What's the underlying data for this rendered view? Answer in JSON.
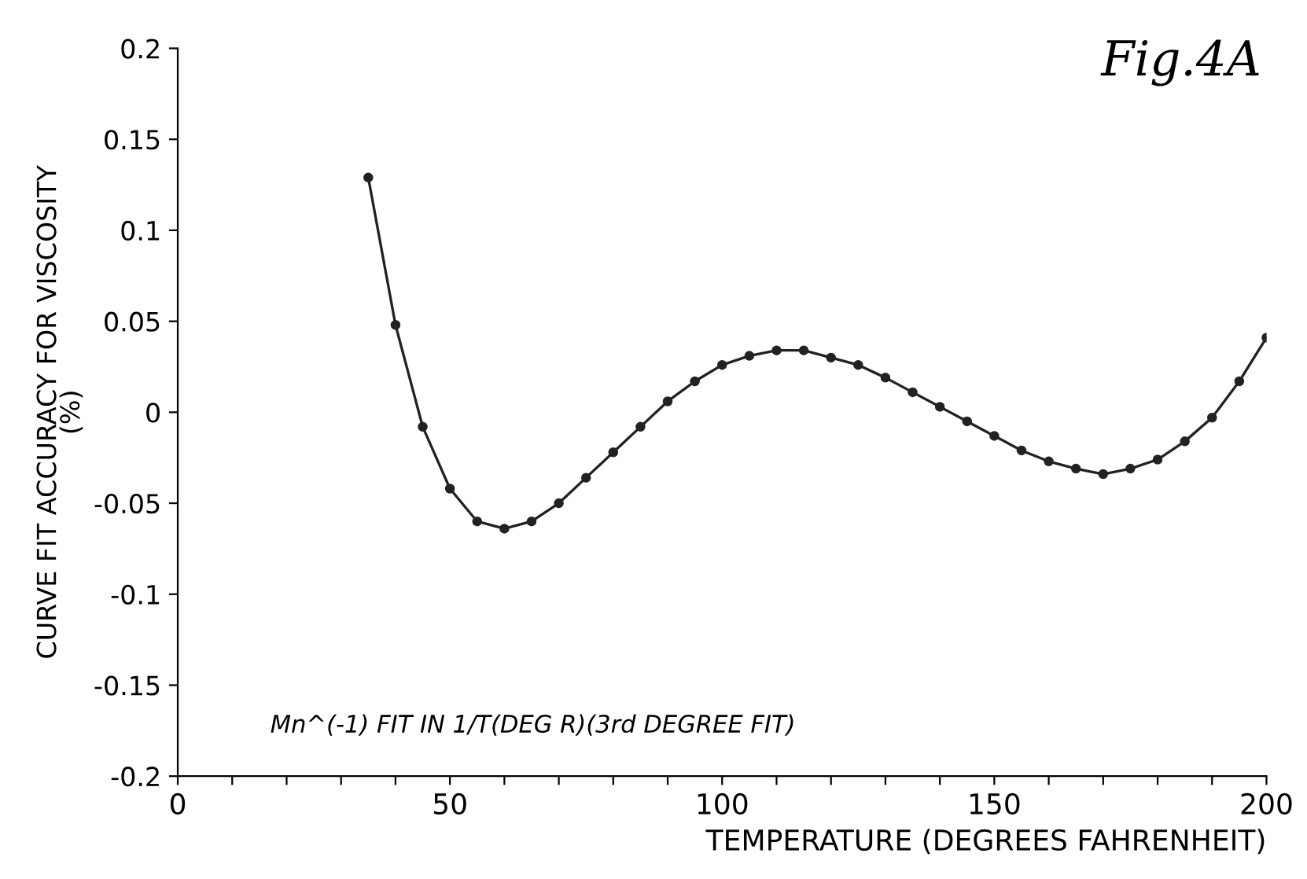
{
  "chart_data": {
    "type": "line",
    "xlabel": "TEMPERATURE (DEGREES FAHRENHEIT)",
    "ylabel": "CURVE FIT ACCURACY FOR VISCOSITY\n(%)",
    "annotations": [
      "Fig.4A",
      "Mn^(-1) FIT IN 1/T(DEG R)(3rd DEGREE FIT)"
    ],
    "x": [
      35,
      40,
      45,
      50,
      55,
      60,
      65,
      70,
      75,
      80,
      85,
      90,
      95,
      100,
      105,
      110,
      115,
      120,
      125,
      130,
      135,
      140,
      145,
      150,
      155,
      160,
      165,
      170,
      175,
      180,
      185,
      190,
      195,
      200
    ],
    "series": [
      {
        "color": "#222222",
        "values": [
          0.129,
          0.048,
          -0.008,
          -0.042,
          -0.06,
          -0.064,
          -0.06,
          -0.05,
          -0.036,
          -0.022,
          -0.008,
          0.006,
          0.017,
          0.026,
          0.031,
          0.034,
          0.034,
          0.03,
          0.026,
          0.019,
          0.011,
          0.003,
          -0.005,
          -0.013,
          -0.021,
          -0.027,
          -0.031,
          -0.034,
          -0.031,
          -0.026,
          -0.016,
          -0.003,
          0.017,
          0.041
        ]
      }
    ],
    "marker": "circle",
    "line_style": "solid",
    "grid": false,
    "legend": false,
    "xlim": [
      0,
      200
    ],
    "xticks": [
      0,
      {
        "value": 10,
        "label": null
      },
      {
        "value": 20,
        "label": null
      },
      {
        "value": 30,
        "label": null
      },
      {
        "value": 40,
        "label": null
      },
      50,
      {
        "value": 60,
        "label": null
      },
      {
        "value": 70,
        "label": null
      },
      {
        "value": 80,
        "label": null
      },
      {
        "value": 90,
        "label": null
      },
      100,
      {
        "value": 110,
        "label": null
      },
      {
        "value": 120,
        "label": null
      },
      {
        "value": 130,
        "label": null
      },
      {
        "value": 140,
        "label": null
      },
      150,
      {
        "value": 160,
        "label": null
      },
      {
        "value": 170,
        "label": null
      },
      {
        "value": 180,
        "label": null
      },
      {
        "value": 190,
        "label": null
      },
      200
    ],
    "ylim": [
      -0.2,
      0.2
    ],
    "yticks": [
      -0.2,
      -0.15,
      -0.1,
      -0.05,
      0,
      0.05,
      0.1,
      0.15,
      0.2
    ]
  }
}
